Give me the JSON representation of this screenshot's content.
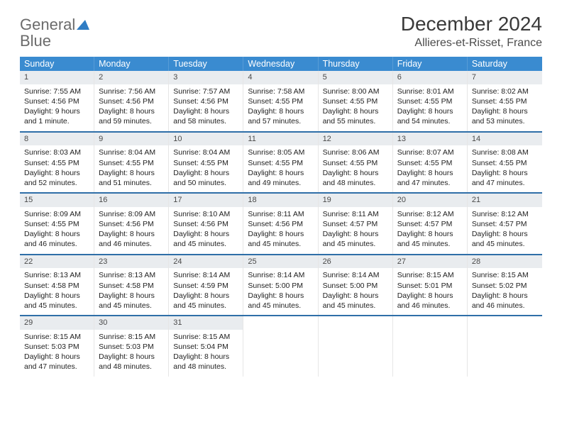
{
  "brand": {
    "word1": "General",
    "word2": "Blue",
    "tri_color": "#2f7dc4",
    "text_color": "#6b6b6b"
  },
  "header": {
    "title": "December 2024",
    "location": "Allieres-et-Risset, France"
  },
  "style": {
    "header_bg": "#3a8bd0",
    "header_fg": "#ffffff",
    "daynum_bg": "#e9ecef",
    "sep_color": "#2f6fa8",
    "cell_border": "#e6e6e6",
    "title_fontsize": 28,
    "location_fontsize": 16,
    "weekday_fontsize": 12.5,
    "body_fontsize": 10.5
  },
  "weekdays": [
    "Sunday",
    "Monday",
    "Tuesday",
    "Wednesday",
    "Thursday",
    "Friday",
    "Saturday"
  ],
  "weeks": [
    [
      {
        "n": "1",
        "sr": "7:55 AM",
        "ss": "4:56 PM",
        "dl": "9 hours and 1 minute."
      },
      {
        "n": "2",
        "sr": "7:56 AM",
        "ss": "4:56 PM",
        "dl": "8 hours and 59 minutes."
      },
      {
        "n": "3",
        "sr": "7:57 AM",
        "ss": "4:56 PM",
        "dl": "8 hours and 58 minutes."
      },
      {
        "n": "4",
        "sr": "7:58 AM",
        "ss": "4:55 PM",
        "dl": "8 hours and 57 minutes."
      },
      {
        "n": "5",
        "sr": "8:00 AM",
        "ss": "4:55 PM",
        "dl": "8 hours and 55 minutes."
      },
      {
        "n": "6",
        "sr": "8:01 AM",
        "ss": "4:55 PM",
        "dl": "8 hours and 54 minutes."
      },
      {
        "n": "7",
        "sr": "8:02 AM",
        "ss": "4:55 PM",
        "dl": "8 hours and 53 minutes."
      }
    ],
    [
      {
        "n": "8",
        "sr": "8:03 AM",
        "ss": "4:55 PM",
        "dl": "8 hours and 52 minutes."
      },
      {
        "n": "9",
        "sr": "8:04 AM",
        "ss": "4:55 PM",
        "dl": "8 hours and 51 minutes."
      },
      {
        "n": "10",
        "sr": "8:04 AM",
        "ss": "4:55 PM",
        "dl": "8 hours and 50 minutes."
      },
      {
        "n": "11",
        "sr": "8:05 AM",
        "ss": "4:55 PM",
        "dl": "8 hours and 49 minutes."
      },
      {
        "n": "12",
        "sr": "8:06 AM",
        "ss": "4:55 PM",
        "dl": "8 hours and 48 minutes."
      },
      {
        "n": "13",
        "sr": "8:07 AM",
        "ss": "4:55 PM",
        "dl": "8 hours and 47 minutes."
      },
      {
        "n": "14",
        "sr": "8:08 AM",
        "ss": "4:55 PM",
        "dl": "8 hours and 47 minutes."
      }
    ],
    [
      {
        "n": "15",
        "sr": "8:09 AM",
        "ss": "4:55 PM",
        "dl": "8 hours and 46 minutes."
      },
      {
        "n": "16",
        "sr": "8:09 AM",
        "ss": "4:56 PM",
        "dl": "8 hours and 46 minutes."
      },
      {
        "n": "17",
        "sr": "8:10 AM",
        "ss": "4:56 PM",
        "dl": "8 hours and 45 minutes."
      },
      {
        "n": "18",
        "sr": "8:11 AM",
        "ss": "4:56 PM",
        "dl": "8 hours and 45 minutes."
      },
      {
        "n": "19",
        "sr": "8:11 AM",
        "ss": "4:57 PM",
        "dl": "8 hours and 45 minutes."
      },
      {
        "n": "20",
        "sr": "8:12 AM",
        "ss": "4:57 PM",
        "dl": "8 hours and 45 minutes."
      },
      {
        "n": "21",
        "sr": "8:12 AM",
        "ss": "4:57 PM",
        "dl": "8 hours and 45 minutes."
      }
    ],
    [
      {
        "n": "22",
        "sr": "8:13 AM",
        "ss": "4:58 PM",
        "dl": "8 hours and 45 minutes."
      },
      {
        "n": "23",
        "sr": "8:13 AM",
        "ss": "4:58 PM",
        "dl": "8 hours and 45 minutes."
      },
      {
        "n": "24",
        "sr": "8:14 AM",
        "ss": "4:59 PM",
        "dl": "8 hours and 45 minutes."
      },
      {
        "n": "25",
        "sr": "8:14 AM",
        "ss": "5:00 PM",
        "dl": "8 hours and 45 minutes."
      },
      {
        "n": "26",
        "sr": "8:14 AM",
        "ss": "5:00 PM",
        "dl": "8 hours and 45 minutes."
      },
      {
        "n": "27",
        "sr": "8:15 AM",
        "ss": "5:01 PM",
        "dl": "8 hours and 46 minutes."
      },
      {
        "n": "28",
        "sr": "8:15 AM",
        "ss": "5:02 PM",
        "dl": "8 hours and 46 minutes."
      }
    ],
    [
      {
        "n": "29",
        "sr": "8:15 AM",
        "ss": "5:03 PM",
        "dl": "8 hours and 47 minutes."
      },
      {
        "n": "30",
        "sr": "8:15 AM",
        "ss": "5:03 PM",
        "dl": "8 hours and 48 minutes."
      },
      {
        "n": "31",
        "sr": "8:15 AM",
        "ss": "5:04 PM",
        "dl": "8 hours and 48 minutes."
      },
      null,
      null,
      null,
      null
    ]
  ],
  "labels": {
    "sunrise": "Sunrise: ",
    "sunset": "Sunset: ",
    "daylight": "Daylight: "
  }
}
